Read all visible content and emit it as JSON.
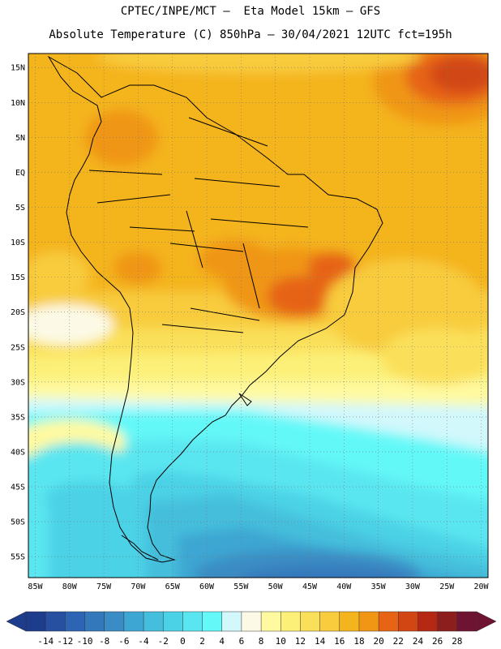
{
  "header": {
    "line1": "CPTEC/INPE/MCT –  Eta Model 15km – GFS",
    "line2": "Absolute Temperature (C) 850hPa – 30/04/2021 12UTC fct=195h"
  },
  "axes": {
    "lat_labels": [
      "15N",
      "10N",
      "5N",
      "EQ",
      "5S",
      "10S",
      "15S",
      "20S",
      "25S",
      "30S",
      "35S",
      "40S",
      "45S",
      "50S",
      "55S"
    ],
    "lon_labels": [
      "85W",
      "80W",
      "75W",
      "70W",
      "65W",
      "60W",
      "55W",
      "50W",
      "45W",
      "40W",
      "35W",
      "30W",
      "25W",
      "20W"
    ],
    "lat_range": [
      17,
      -58
    ],
    "lon_range": [
      -86,
      -19
    ]
  },
  "colorbar": {
    "tick_labels": [
      "-14",
      "-12",
      "-10",
      "-8",
      "-6",
      "-4",
      "-2",
      "0",
      "2",
      "4",
      "6",
      "8",
      "10",
      "12",
      "14",
      "16",
      "18",
      "20",
      "22",
      "24",
      "26",
      "28"
    ],
    "colors": [
      "#1e3c8c",
      "#2850a0",
      "#2e64b4",
      "#3478bc",
      "#3a8cc4",
      "#3ea6d2",
      "#44bedc",
      "#4cd2e6",
      "#5ae6f0",
      "#64f8f8",
      "#d2f8fc",
      "#fcfae6",
      "#fffaa0",
      "#fcf078",
      "#fae05a",
      "#f8cc3c",
      "#f4b41e",
      "#f09614",
      "#e66414",
      "#d24614",
      "#b42814",
      "#8c1e1e",
      "#6e1432"
    ]
  },
  "icons": {
    "left_arrow": "triangle-left-icon",
    "right_arrow": "triangle-right-icon"
  }
}
